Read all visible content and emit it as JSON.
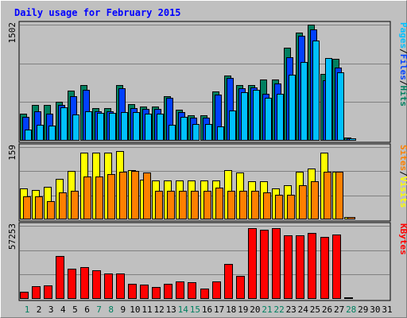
{
  "chart_data": {
    "type": "bar",
    "title": "Daily usage for February 2015",
    "categories": [
      "1",
      "2",
      "3",
      "4",
      "5",
      "6",
      "7",
      "8",
      "9",
      "10",
      "11",
      "12",
      "13",
      "14",
      "15",
      "16",
      "17",
      "18",
      "19",
      "20",
      "21",
      "22",
      "23",
      "24",
      "25",
      "26",
      "27",
      "28",
      "29",
      "30",
      "31"
    ],
    "weekend_days": [
      1,
      7,
      8,
      14,
      15,
      21,
      22,
      28
    ],
    "panels": [
      {
        "name": "top",
        "ymax_label": "1502",
        "ylim": [
          0,
          1502
        ],
        "legend": [
          {
            "text": "Pages",
            "color": "#00c0ff"
          },
          {
            "text": "/",
            "color": "#000000"
          },
          {
            "text": "Files",
            "color": "#0040ff"
          },
          {
            "text": "/",
            "color": "#000000"
          },
          {
            "text": "Hits",
            "color": "#008060"
          }
        ],
        "series": [
          {
            "name": "Hits",
            "color": "#008060",
            "values": [
              354,
              462,
              462,
              502,
              644,
              720,
              424,
              424,
              724,
              470,
              446,
              446,
              573,
              400,
              330,
              330,
              633,
              840,
              722,
              722,
              790,
              790,
              1200,
              1400,
              1500,
              860,
              1060,
              40,
              0,
              0,
              0
            ]
          },
          {
            "name": "Files",
            "color": "#0040ff",
            "values": [
              308,
              384,
              345,
              460,
              572,
              656,
              384,
              384,
              676,
              420,
              414,
              414,
              552,
              370,
              302,
              302,
              600,
              812,
              676,
              694,
              604,
              738,
              1084,
              1362,
              1437,
              786,
              946,
              36,
              0,
              0,
              0
            ]
          },
          {
            "name": "Pages",
            "color": "#00c0ff",
            "values": [
              148,
              210,
              192,
              427,
              342,
              380,
              360,
              360,
              374,
              374,
              346,
              346,
              202,
              304,
              214,
              214,
              190,
              394,
              624,
              655,
              553,
              604,
              854,
              1016,
              1300,
              1070,
              880,
              30,
              0,
              0,
              0
            ]
          }
        ]
      },
      {
        "name": "middle",
        "ymax_label": "159",
        "ylim": [
          0,
          159
        ],
        "legend": [
          {
            "text": "Sites",
            "color": "#ff8000"
          },
          {
            "text": "/",
            "color": "#000000"
          },
          {
            "text": "Visits",
            "color": "#ffff00"
          }
        ],
        "series": [
          {
            "name": "Visits",
            "color": "#ffff00",
            "values": [
              68,
              64,
              71,
              89,
              107,
              146,
              146,
              146,
              150,
              109,
              88,
              86,
              86,
              86,
              86,
              86,
              86,
              109,
              103,
              83,
              83,
              68,
              75,
              105,
              112,
              146,
              104,
              6,
              0,
              0,
              0
            ]
          },
          {
            "name": "Sites",
            "color": "#ff8000",
            "values": [
              50,
              50,
              40,
              60,
              63,
              95,
              95,
              100,
              105,
              107,
              103,
              63,
              63,
              63,
              63,
              63,
              70,
              63,
              63,
              63,
              60,
              55,
              55,
              75,
              84,
              105,
              105,
              5,
              0,
              0,
              0
            ]
          }
        ]
      },
      {
        "name": "bottom",
        "ymax_label": "57253",
        "ylim": [
          0,
          57253
        ],
        "legend": [
          {
            "text": "KBytes",
            "color": "#ff0000"
          }
        ],
        "series": [
          {
            "name": "KBytes",
            "color": "#ff0000",
            "values": [
              5700,
              10200,
              10650,
              33500,
              23400,
              24600,
              22400,
              20200,
              19700,
              12100,
              11500,
              9300,
              12000,
              13700,
              12800,
              8200,
              13900,
              27600,
              17800,
              55600,
              54300,
              55600,
              49600,
              49600,
              51800,
              48600,
              50500,
              1300,
              0,
              0,
              0
            ]
          }
        ]
      }
    ]
  }
}
